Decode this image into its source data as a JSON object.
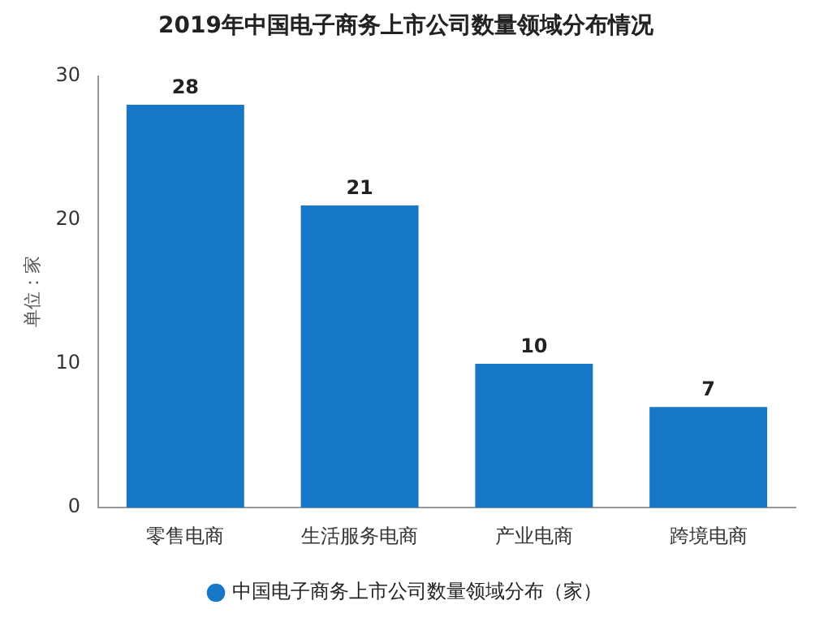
{
  "chart_data": {
    "type": "bar",
    "title": "2019年中国电子商务上市公司数量领域分布情况",
    "ylabel": "单位：家",
    "categories": [
      "零售电商",
      "生活服务电商",
      "产业电商",
      "跨境电商"
    ],
    "series": [
      {
        "name": "中国电子商务上市公司数量领域分布（家）",
        "color": "#1577c6",
        "values": [
          28,
          21,
          10,
          7
        ]
      }
    ],
    "ylim": [
      0,
      30
    ],
    "yticks": [
      0,
      10,
      20,
      30
    ],
    "data_labels": true,
    "legend": "bottom"
  }
}
